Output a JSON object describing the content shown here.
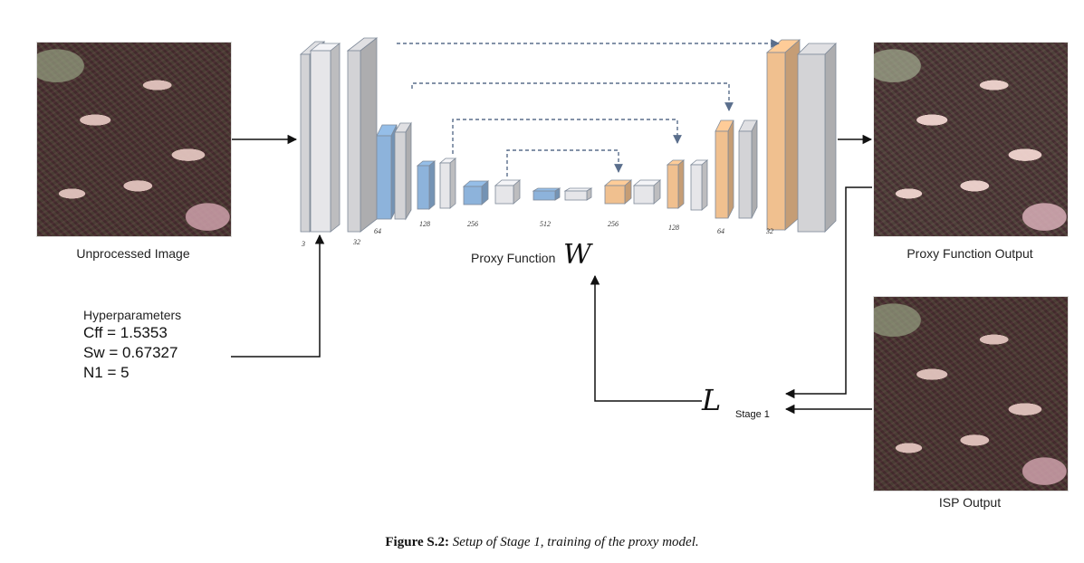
{
  "panels": {
    "input_label": "Unprocessed Image",
    "proxy_output_label": "Proxy Function Output",
    "isp_output_label": "ISP Output"
  },
  "hyperparameters": {
    "title": "Hyperparameters",
    "lines": [
      "Cff = 1.5353",
      "Sw = 0.67327",
      "N1 = 5"
    ]
  },
  "network": {
    "label": "Proxy Function",
    "symbol": "W",
    "channels": [
      "3",
      "32",
      "64",
      "128",
      "256",
      "512",
      "256",
      "128",
      "64",
      "32"
    ]
  },
  "loss": {
    "symbol": "L",
    "stage": "Stage 1"
  },
  "caption": {
    "figure": "Figure S.2:",
    "text": "Setup of Stage 1, training of the proxy model."
  },
  "colors": {
    "encoder_gray": "#d3d3d6",
    "encoder_blue": "#8db3db",
    "decoder_orange": "#f0c08f",
    "edge": "#7f8a99"
  }
}
